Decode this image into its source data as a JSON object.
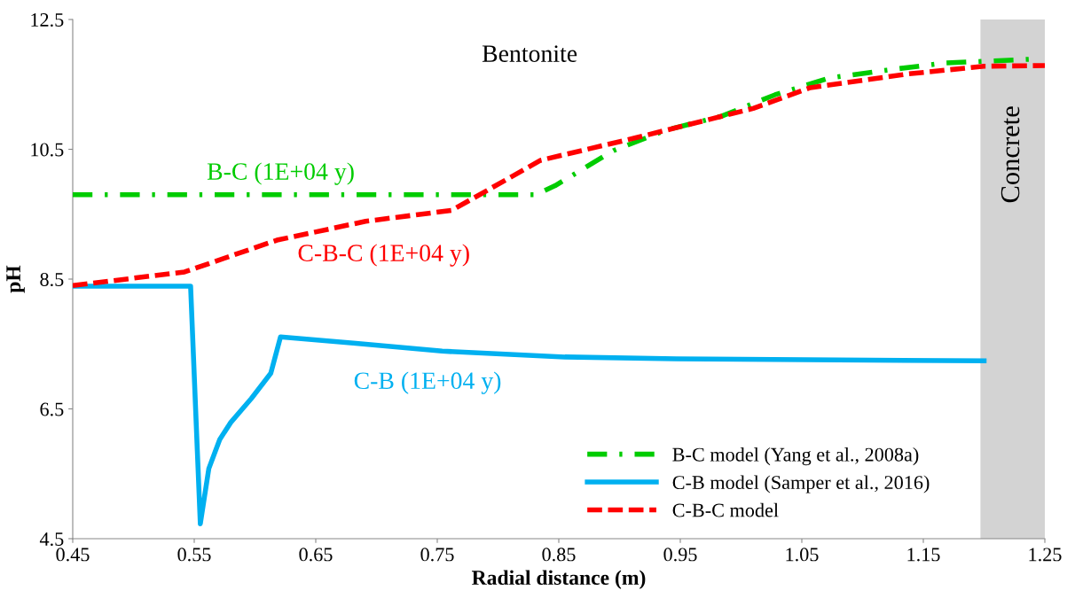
{
  "chart_data": {
    "type": "line",
    "xlabel": "Radial distance (m)",
    "ylabel": "pH",
    "xlim": [
      0.45,
      1.25
    ],
    "xticks": [
      0.45,
      0.55,
      0.65,
      0.75,
      0.85,
      0.95,
      1.05,
      1.15,
      1.25
    ],
    "ylim": [
      4.5,
      12.5
    ],
    "yticks": [
      4.5,
      6.5,
      8.5,
      10.5,
      12.5
    ],
    "grid": false,
    "legend": "bottom right",
    "marker": "none",
    "series": [
      {
        "name": "B-C model (Yang et al., 2008a)",
        "color": "#00cc00",
        "line_style": "dashdot",
        "x": [
          0.45,
          0.6,
          0.75,
          0.831,
          0.847,
          0.895,
          0.939,
          0.984,
          1.028,
          1.073,
          1.12,
          1.168,
          1.241
        ],
        "values": [
          9.8,
          9.8,
          9.8,
          9.8,
          9.94,
          10.48,
          10.8,
          11.01,
          11.34,
          11.6,
          11.72,
          11.83,
          11.89
        ]
      },
      {
        "name": "C-B model (Samper et al., 2016)",
        "color": "#00b0f0",
        "line_style": "solid",
        "x": [
          0.45,
          0.547,
          0.555,
          0.562,
          0.571,
          0.58,
          0.597,
          0.613,
          0.621,
          0.683,
          0.754,
          0.855,
          0.947,
          1.2
        ],
        "values": [
          8.39,
          8.39,
          4.73,
          5.58,
          6.03,
          6.29,
          6.66,
          7.05,
          7.61,
          7.51,
          7.39,
          7.3,
          7.27,
          7.24
        ]
      },
      {
        "name": "C-B-C model",
        "color": "#ff0000",
        "line_style": "dashed",
        "x": [
          0.45,
          0.542,
          0.618,
          0.691,
          0.762,
          0.835,
          0.914,
          1.01,
          1.057,
          1.137,
          1.2,
          1.25
        ],
        "values": [
          8.4,
          8.61,
          9.1,
          9.39,
          9.56,
          10.33,
          10.68,
          11.13,
          11.45,
          11.66,
          11.78,
          11.79
        ]
      }
    ],
    "bands": [
      {
        "axis": "x",
        "from": 1.197,
        "to": 1.25,
        "label": "Concrete",
        "color": "#d3d3d3"
      }
    ],
    "annotations": [
      "Bentonite",
      "B-C (1E+04 y)",
      "C-B-C (1E+04 y)",
      "C-B (1E+04 y)"
    ]
  }
}
